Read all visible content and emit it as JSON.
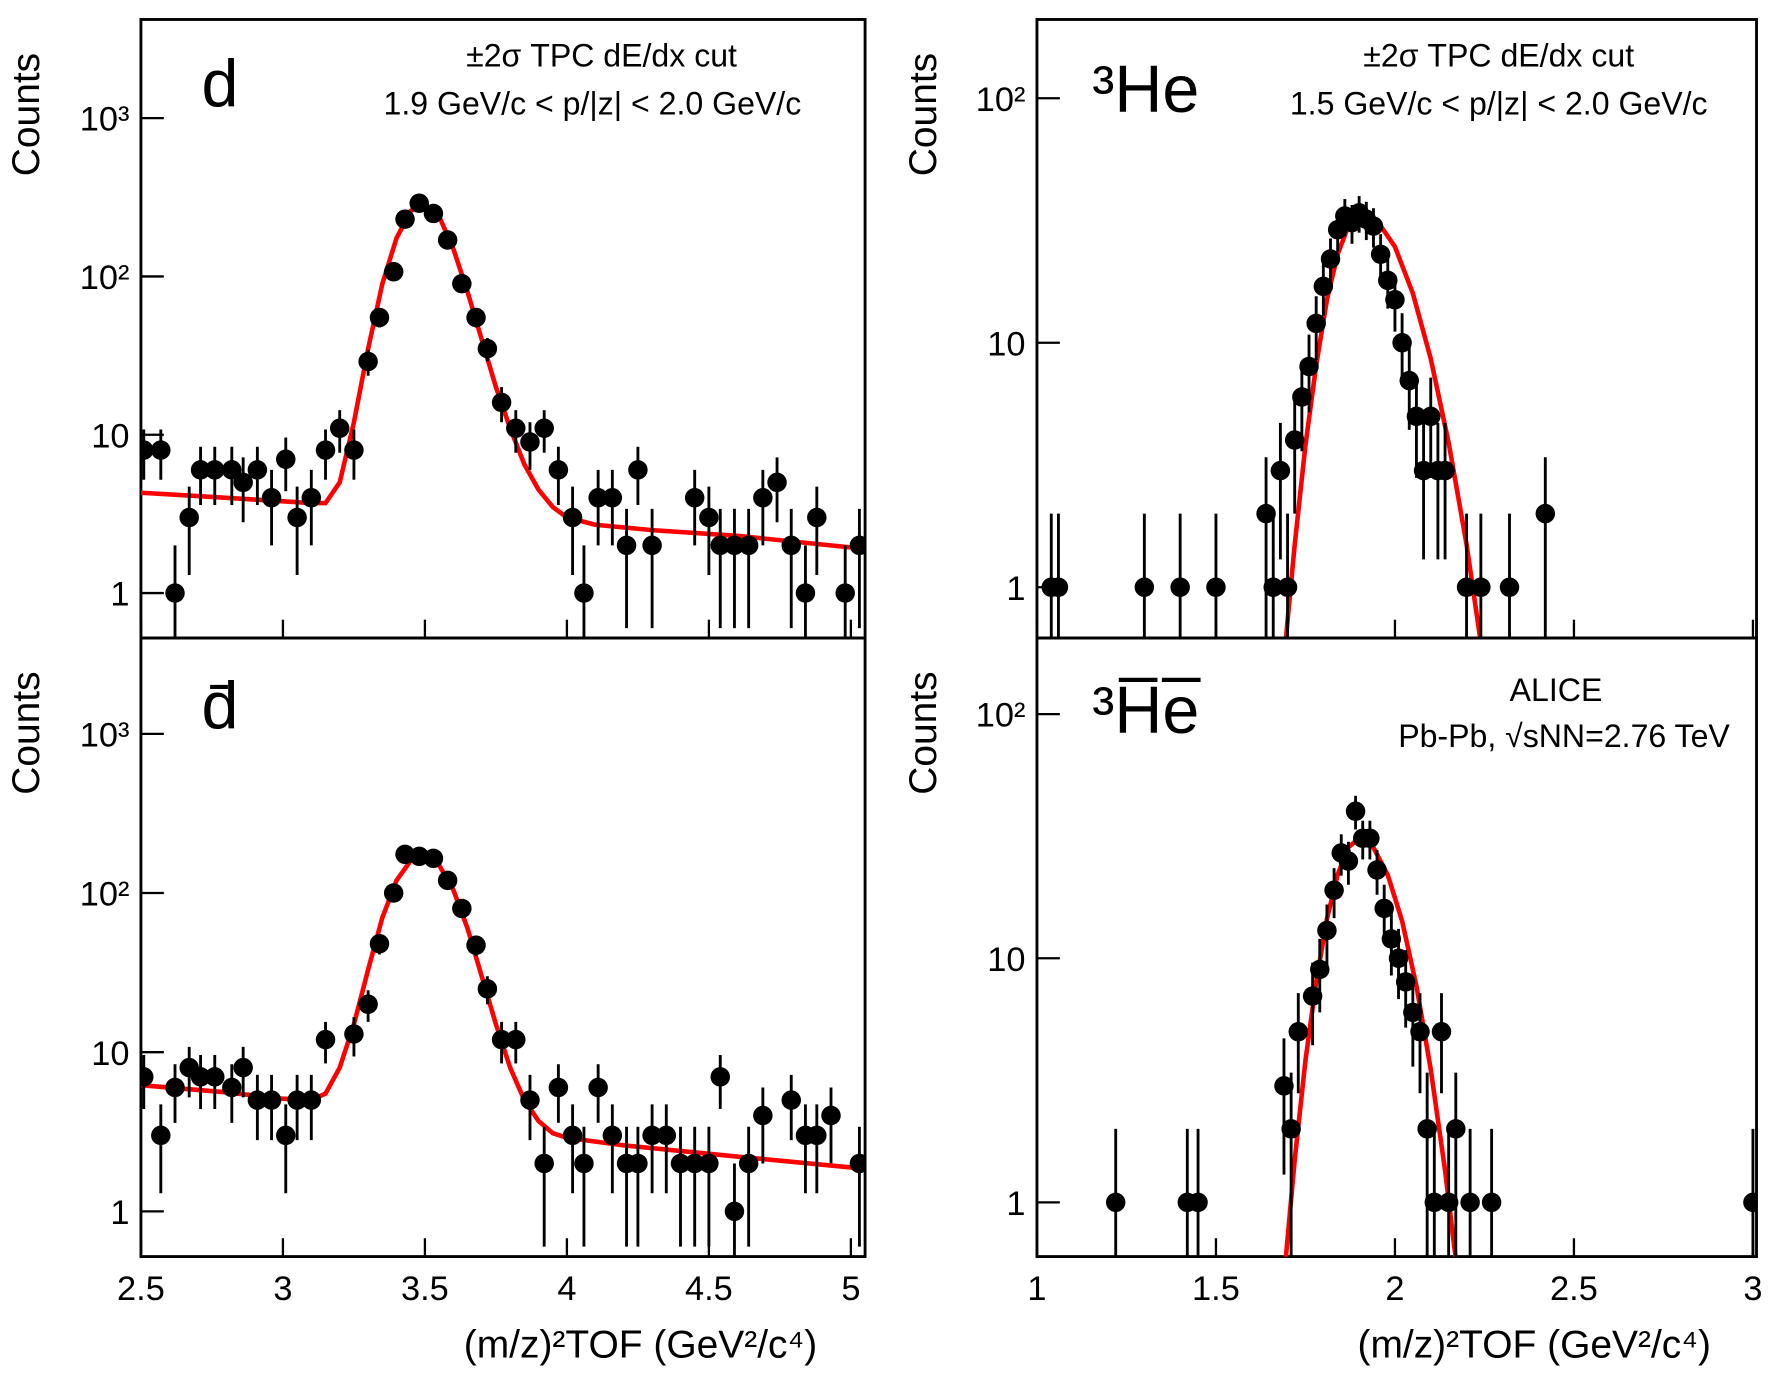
{
  "chart_data": [
    {
      "type": "scatter",
      "label": "d",
      "annotations": [
        "±2σ TPC dE/dx cut",
        "1.9 GeV/c < p/|z| < 2.0 GeV/c"
      ],
      "ylabel": "Counts",
      "logy": true,
      "xlim": [
        2.5,
        5.05
      ],
      "ylim": [
        0.52,
        4200
      ],
      "xticks": [
        2.5,
        3,
        3.5,
        4,
        4.5,
        5
      ],
      "yticks": [
        1,
        10,
        {
          "value": 100,
          "label": "10²"
        },
        {
          "value": 1000,
          "label": "10³"
        }
      ],
      "color": "#000000",
      "x": [
        2.51,
        2.57,
        2.62,
        2.67,
        2.71,
        2.76,
        2.82,
        2.86,
        2.91,
        2.96,
        3.01,
        3.05,
        3.1,
        3.15,
        3.2,
        3.25,
        3.3,
        3.34,
        3.39,
        3.43,
        3.48,
        3.53,
        3.58,
        3.63,
        3.68,
        3.72,
        3.77,
        3.82,
        3.87,
        3.92,
        3.97,
        4.02,
        4.06,
        4.11,
        4.16,
        4.21,
        4.25,
        4.3,
        4.45,
        4.5,
        4.54,
        4.59,
        4.64,
        4.69,
        4.74,
        4.79,
        4.84,
        4.88,
        4.98,
        5.03
      ],
      "values": [
        8,
        8,
        1,
        3,
        6,
        6,
        6,
        5,
        6,
        4,
        7,
        3,
        4,
        8,
        11,
        8,
        29,
        55,
        107,
        230,
        290,
        250,
        170,
        90,
        55,
        35,
        16,
        11,
        9,
        11,
        6,
        3,
        1,
        4,
        4,
        2,
        6,
        2,
        4,
        3,
        2,
        2,
        2,
        4,
        5,
        2,
        1,
        3,
        1,
        2
      ],
      "errors": [
        2.8,
        2.8,
        1,
        1.7,
        2.4,
        2.4,
        2.4,
        2.2,
        2.4,
        2,
        2.6,
        1.7,
        2,
        2.8,
        3.3,
        2.8,
        5.4,
        7.4,
        10.3,
        15.2,
        17,
        15.8,
        13,
        9.5,
        7.4,
        5.9,
        4,
        3.3,
        3,
        3.3,
        2.4,
        1.7,
        1,
        2,
        2,
        1.4,
        2.4,
        1.4,
        2,
        1.7,
        1.4,
        1.4,
        1.4,
        2,
        2.2,
        1.4,
        1,
        1.7,
        1,
        1.4
      ],
      "fit": {
        "color": "#ff0000",
        "x": [
          2.5,
          2.7,
          2.9,
          3.1,
          3.15,
          3.2,
          3.25,
          3.3,
          3.35,
          3.4,
          3.45,
          3.49,
          3.55,
          3.6,
          3.65,
          3.7,
          3.75,
          3.8,
          3.85,
          3.9,
          3.95,
          4.0,
          4.1,
          4.3,
          4.6,
          5.05
        ],
        "values": [
          4.3,
          4.1,
          3.9,
          3.7,
          3.7,
          5,
          12,
          35,
          90,
          175,
          260,
          280,
          240,
          150,
          80,
          40,
          20,
          11,
          6.5,
          4.5,
          3.5,
          3,
          2.7,
          2.5,
          2.3,
          1.9
        ]
      }
    },
    {
      "type": "scatter",
      "label": "d̄",
      "ylabel": "Counts",
      "xlabel": "(m/z)²TOF (GeV²/c⁴)",
      "logy": true,
      "xlim": [
        2.5,
        5.05
      ],
      "ylim": [
        0.52,
        4000
      ],
      "xticks": [
        2.5,
        3,
        3.5,
        4,
        4.5,
        5
      ],
      "yticks": [
        1,
        10,
        {
          "value": 100,
          "label": "10²"
        },
        {
          "value": 1000,
          "label": "10³"
        }
      ],
      "color": "#000000",
      "x": [
        2.51,
        2.57,
        2.62,
        2.67,
        2.71,
        2.76,
        2.82,
        2.86,
        2.91,
        2.96,
        3.01,
        3.05,
        3.1,
        3.15,
        3.25,
        3.3,
        3.34,
        3.39,
        3.43,
        3.48,
        3.53,
        3.58,
        3.63,
        3.68,
        3.72,
        3.77,
        3.82,
        3.87,
        3.92,
        3.97,
        4.02,
        4.06,
        4.11,
        4.16,
        4.21,
        4.25,
        4.3,
        4.35,
        4.4,
        4.45,
        4.5,
        4.54,
        4.59,
        4.64,
        4.69,
        4.79,
        4.84,
        4.88,
        4.93,
        5.03
      ],
      "values": [
        7,
        3,
        6,
        8,
        7,
        7,
        6,
        8,
        5,
        5,
        3,
        5,
        5,
        12,
        13,
        20,
        48,
        100,
        175,
        170,
        165,
        120,
        80,
        47,
        25,
        12,
        12,
        5,
        2,
        6,
        3,
        2,
        6,
        3,
        2,
        2,
        3,
        3,
        2,
        2,
        2,
        7,
        1,
        2,
        4,
        5,
        3,
        3,
        4,
        2
      ],
      "errors": [
        2.6,
        1.7,
        2.4,
        2.8,
        2.6,
        2.6,
        2.4,
        2.8,
        2.2,
        2.2,
        1.7,
        2.2,
        2.2,
        3.5,
        3.6,
        4.5,
        6.9,
        10,
        13.2,
        13,
        12.8,
        11,
        8.9,
        6.9,
        5,
        3.5,
        3.5,
        2.2,
        1.4,
        2.4,
        1.7,
        1.4,
        2.4,
        1.7,
        1.4,
        1.4,
        1.7,
        1.7,
        1.4,
        1.4,
        1.4,
        2.6,
        1,
        1.4,
        2,
        2.2,
        1.7,
        1.7,
        2,
        1.4
      ],
      "fit": {
        "color": "#ff0000",
        "x": [
          2.5,
          2.8,
          3.0,
          3.1,
          3.15,
          3.2,
          3.25,
          3.3,
          3.35,
          3.4,
          3.45,
          3.5,
          3.55,
          3.6,
          3.65,
          3.7,
          3.75,
          3.8,
          3.85,
          3.9,
          3.95,
          4.0,
          4.2,
          4.5,
          5.05
        ],
        "values": [
          6.2,
          5.6,
          5.1,
          5,
          5.5,
          8,
          15,
          33,
          70,
          120,
          160,
          170,
          150,
          105,
          60,
          30,
          15,
          8,
          5,
          3.7,
          3.1,
          2.9,
          2.6,
          2.3,
          1.85
        ]
      }
    },
    {
      "type": "scatter",
      "label": "³He",
      "annotations": [
        "±2σ TPC dE/dx cut",
        "1.5 GeV/c < p/|z| < 2.0 GeV/c"
      ],
      "ylabel": "Counts",
      "logy": true,
      "xlim": [
        1,
        3.01
      ],
      "ylim": [
        0.62,
        210
      ],
      "xticks": [
        1,
        1.5,
        2,
        2.5,
        3
      ],
      "yticks": [
        1,
        10,
        {
          "value": 100,
          "label": "10²"
        }
      ],
      "color": "#000000",
      "x": [
        1.04,
        1.06,
        1.3,
        1.4,
        1.5,
        1.64,
        1.66,
        1.68,
        1.7,
        1.72,
        1.74,
        1.76,
        1.78,
        1.8,
        1.82,
        1.84,
        1.86,
        1.88,
        1.9,
        1.92,
        1.94,
        1.96,
        1.98,
        2.0,
        2.02,
        2.04,
        2.06,
        2.08,
        2.1,
        2.12,
        2.14,
        2.2,
        2.24,
        2.32,
        2.42
      ],
      "values": [
        1,
        1,
        1,
        1,
        1,
        2,
        1,
        3,
        1,
        4,
        6,
        8,
        12,
        17,
        22,
        29,
        33,
        31,
        34,
        32,
        30,
        23,
        18,
        15,
        10,
        7,
        5,
        3,
        5,
        3,
        3,
        1,
        1,
        1,
        2
      ],
      "errors": [
        1,
        1,
        1,
        1,
        1,
        1.4,
        1,
        1.7,
        1,
        2,
        2.4,
        2.8,
        3.5,
        4.1,
        4.7,
        5.4,
        5.7,
        5.6,
        5.8,
        5.7,
        5.5,
        4.8,
        4.2,
        3.9,
        3.2,
        2.6,
        2.2,
        1.7,
        2.2,
        1.7,
        1.7,
        1,
        1,
        1,
        1.4
      ],
      "fit": {
        "color": "#ff0000",
        "x": [
          1.69,
          1.7,
          1.72,
          1.75,
          1.78,
          1.81,
          1.84,
          1.87,
          1.905,
          1.95,
          2.0,
          2.05,
          2.1,
          2.15,
          2.2,
          2.25
        ],
        "values": [
          0.5,
          0.73,
          1.5,
          3.8,
          8.1,
          15,
          23,
          30,
          34,
          31.6,
          24.7,
          15.9,
          8.6,
          3.9,
          1.5,
          0.47
        ]
      }
    },
    {
      "type": "scatter",
      "label": "³H̅e̅",
      "annotations": [
        "ALICE",
        "Pb-Pb, √sNN=2.76 TeV"
      ],
      "ylabel": "Counts",
      "xlabel": "(m/z)²TOF (GeV²/c⁴)",
      "logy": true,
      "xlim": [
        1,
        3.01
      ],
      "ylim": [
        0.6,
        205
      ],
      "xticks": [
        1,
        1.5,
        2,
        2.5,
        3
      ],
      "yticks": [
        1,
        10,
        {
          "value": 100,
          "label": "10²"
        }
      ],
      "color": "#000000",
      "x": [
        1.22,
        1.42,
        1.45,
        1.69,
        1.71,
        1.73,
        1.77,
        1.79,
        1.81,
        1.83,
        1.85,
        1.87,
        1.89,
        1.91,
        1.93,
        1.95,
        1.97,
        1.99,
        2.01,
        2.03,
        2.05,
        2.07,
        2.09,
        2.11,
        2.13,
        2.15,
        2.17,
        2.21,
        2.27,
        3.0
      ],
      "values": [
        1,
        1,
        1,
        3,
        2,
        5,
        7,
        9,
        13,
        19,
        27,
        25,
        40,
        31,
        31,
        23,
        16,
        12,
        10,
        8,
        6,
        5,
        2,
        1,
        5,
        1,
        2,
        1,
        1,
        1
      ],
      "errors": [
        1,
        1,
        1,
        1.7,
        1.4,
        2.2,
        2.6,
        3,
        3.6,
        4.4,
        5.2,
        5,
        6.3,
        5.6,
        5.6,
        4.8,
        4,
        3.5,
        3.2,
        2.8,
        2.4,
        2.2,
        1.4,
        1,
        2.2,
        1,
        1.4,
        1,
        1,
        1
      ],
      "fit": {
        "color": "#ff0000",
        "x": [
          1.69,
          1.72,
          1.75,
          1.78,
          1.81,
          1.84,
          1.87,
          1.9,
          1.94,
          1.98,
          2.02,
          2.06,
          2.1,
          2.14,
          2.18
        ],
        "values": [
          0.49,
          1.5,
          3.8,
          8,
          14.5,
          22,
          28.5,
          31,
          28.4,
          21.9,
          14.2,
          7.7,
          3.5,
          1.35,
          0.44
        ]
      }
    }
  ]
}
